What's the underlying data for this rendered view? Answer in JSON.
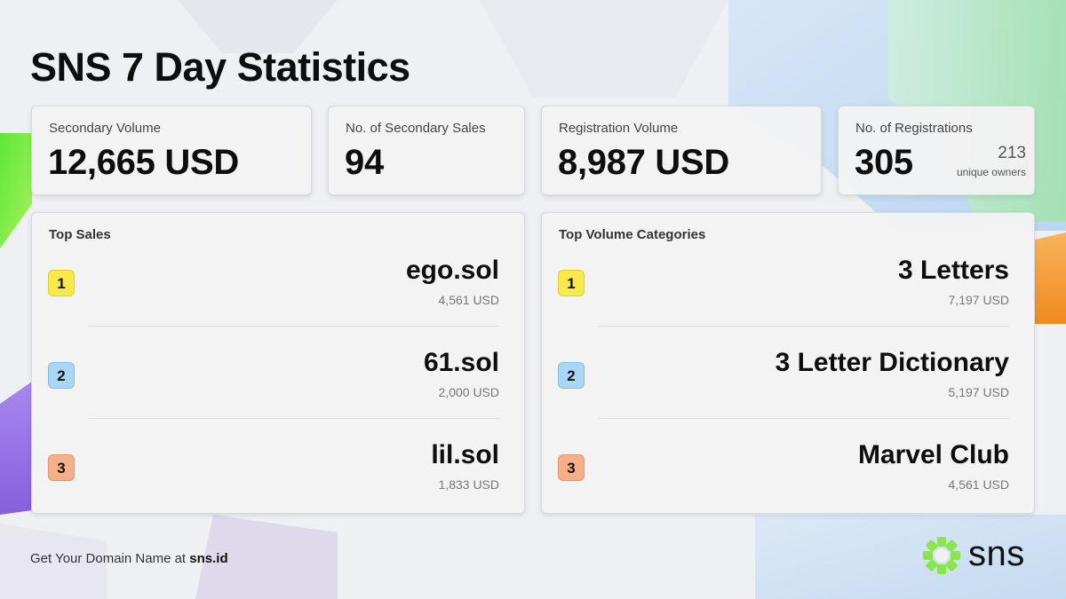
{
  "title": "SNS 7 Day Statistics",
  "stats": [
    {
      "label": "Secondary Volume",
      "value": "12,665 USD"
    },
    {
      "label": "No. of Secondary Sales",
      "value": "94"
    },
    {
      "label": "Registration Volume",
      "value": "8,987 USD"
    },
    {
      "label": "No. of Registrations",
      "value": "305",
      "extra_value": "213",
      "extra_label": "unique owners"
    }
  ],
  "top_sales": {
    "title": "Top Sales",
    "items": [
      {
        "rank": "1",
        "name": "ego.sol",
        "value": "4,561 USD"
      },
      {
        "rank": "2",
        "name": "61.sol",
        "value": "2,000 USD"
      },
      {
        "rank": "3",
        "name": "lil.sol",
        "value": "1,833 USD"
      }
    ]
  },
  "top_categories": {
    "title": "Top Volume Categories",
    "items": [
      {
        "rank": "1",
        "name": "3 Letters",
        "value": "7,197 USD"
      },
      {
        "rank": "2",
        "name": "3 Letter Dictionary",
        "value": "5,197 USD"
      },
      {
        "rank": "3",
        "name": "Marvel Club",
        "value": "4,561 USD"
      }
    ]
  },
  "footer": {
    "prefix": "Get Your Domain Name at ",
    "link": "sns.id"
  },
  "logo": {
    "text": "sns",
    "icon": "sns-logo-icon"
  },
  "colors": {
    "rank1": "#fbe84a",
    "rank2": "#a9d6f5",
    "rank3": "#f5b08a",
    "accent_green": "#7cf03c",
    "accent_purple": "#8a5ce0",
    "accent_orange": "#f59b2b"
  }
}
